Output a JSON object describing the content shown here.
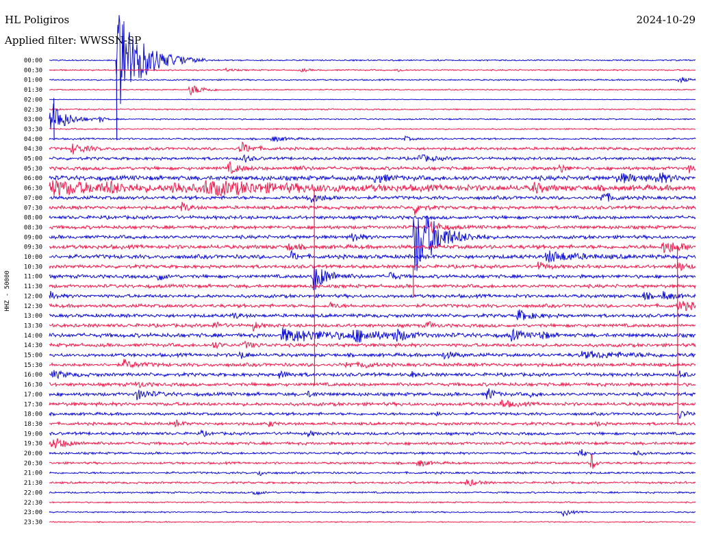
{
  "header": {
    "station": "HL Poligiros",
    "date": "2024-10-29",
    "filter": "Applied filter: WWSSN-SP"
  },
  "chart_data": {
    "type": "line",
    "title": "HL Poligiros",
    "subtitle": "Applied filter: WWSSN-SP",
    "ylabel": "HHZ - 50000",
    "xlabel": "",
    "date": "2024-10-29",
    "row_interval_minutes": 30,
    "colors": {
      "even_rows": "#0a0ad6",
      "odd_rows": "#f0184a"
    },
    "tick_labels": [
      "00:00",
      "00:30",
      "01:00",
      "01:30",
      "02:00",
      "02:30",
      "03:00",
      "03:30",
      "04:00",
      "04:30",
      "05:00",
      "05:30",
      "06:00",
      "06:30",
      "07:00",
      "07:30",
      "08:00",
      "08:30",
      "09:00",
      "09:30",
      "10:00",
      "10:30",
      "11:00",
      "11:30",
      "12:00",
      "12:30",
      "13:00",
      "13:30",
      "14:00",
      "14:30",
      "15:00",
      "15:30",
      "16:00",
      "16:30",
      "17:00",
      "17:30",
      "18:00",
      "18:30",
      "19:00",
      "19:30",
      "20:00",
      "20:30",
      "21:00",
      "21:30",
      "22:00",
      "22:30",
      "23:00",
      "23:30"
    ],
    "noise_levels": [
      1.2,
      1.2,
      1.2,
      1.0,
      0.6,
      1.2,
      1.2,
      1.2,
      1.5,
      2.5,
      2.5,
      3.0,
      4.0,
      5.0,
      3.0,
      3.0,
      3.0,
      3.0,
      3.0,
      3.5,
      3.5,
      3.0,
      3.0,
      3.0,
      3.0,
      3.0,
      3.0,
      3.0,
      3.5,
      3.0,
      3.0,
      3.0,
      3.0,
      3.0,
      3.0,
      3.0,
      2.5,
      2.5,
      2.5,
      2.5,
      2.0,
      2.0,
      1.8,
      1.8,
      1.5,
      1.2,
      1.2,
      1.0
    ],
    "events": [
      {
        "row": 0,
        "t": 0.105,
        "amp": 78,
        "dur": 0.035
      },
      {
        "row": 1,
        "t": 0.27,
        "amp": 3,
        "dur": 0.01
      },
      {
        "row": 1,
        "t": 0.39,
        "amp": 3,
        "dur": 0.008
      },
      {
        "row": 1,
        "t": 0.54,
        "amp": 3,
        "dur": 0.006
      },
      {
        "row": 2,
        "t": 0.975,
        "amp": 5,
        "dur": 0.01
      },
      {
        "row": 3,
        "t": 0.218,
        "amp": 8,
        "dur": 0.02
      },
      {
        "row": 6,
        "t": 0.003,
        "amp": 28,
        "dur": 0.02
      },
      {
        "row": 6,
        "t": 0.078,
        "amp": 4,
        "dur": 0.008
      },
      {
        "row": 8,
        "t": 0.345,
        "amp": 4,
        "dur": 0.02
      },
      {
        "row": 8,
        "t": 0.55,
        "amp": 4,
        "dur": 0.008
      },
      {
        "row": 9,
        "t": 0.035,
        "amp": 8,
        "dur": 0.02
      },
      {
        "row": 9,
        "t": 0.295,
        "amp": 10,
        "dur": 0.015
      },
      {
        "row": 10,
        "t": 0.3,
        "amp": 6,
        "dur": 0.01
      },
      {
        "row": 10,
        "t": 0.57,
        "amp": 6,
        "dur": 0.02
      },
      {
        "row": 11,
        "t": 0.278,
        "amp": 8,
        "dur": 0.015
      },
      {
        "row": 11,
        "t": 0.375,
        "amp": 4,
        "dur": 0.015
      },
      {
        "row": 11,
        "t": 0.79,
        "amp": 8,
        "dur": 0.008
      },
      {
        "row": 11,
        "t": 0.99,
        "amp": 6,
        "dur": 0.008
      },
      {
        "row": 12,
        "t": 0.505,
        "amp": 8,
        "dur": 0.015
      },
      {
        "row": 12,
        "t": 0.88,
        "amp": 6,
        "dur": 0.03
      },
      {
        "row": 12,
        "t": 0.94,
        "amp": 8,
        "dur": 0.015
      },
      {
        "row": 13,
        "t": 0.0,
        "amp": 10,
        "dur": 0.08
      },
      {
        "row": 13,
        "t": 0.09,
        "amp": 7,
        "dur": 0.015
      },
      {
        "row": 13,
        "t": 0.19,
        "amp": 9,
        "dur": 0.02
      },
      {
        "row": 13,
        "t": 0.24,
        "amp": 9,
        "dur": 0.13
      },
      {
        "row": 13,
        "t": 0.75,
        "amp": 9,
        "dur": 0.01
      },
      {
        "row": 14,
        "t": 0.4,
        "amp": 8,
        "dur": 0.02
      },
      {
        "row": 14,
        "t": 0.855,
        "amp": 8,
        "dur": 0.015
      },
      {
        "row": 15,
        "t": 0.205,
        "amp": 8,
        "dur": 0.01
      },
      {
        "row": 15,
        "t": 0.565,
        "amp": 10,
        "dur": 0.01
      },
      {
        "row": 17,
        "t": 0.59,
        "amp": 9,
        "dur": 0.015
      },
      {
        "row": 18,
        "t": 0.47,
        "amp": 8,
        "dur": 0.01
      },
      {
        "row": 18,
        "t": 0.565,
        "amp": 60,
        "dur": 0.03
      },
      {
        "row": 19,
        "t": 0.37,
        "amp": 6,
        "dur": 0.01
      },
      {
        "row": 19,
        "t": 0.95,
        "amp": 9,
        "dur": 0.03
      },
      {
        "row": 20,
        "t": 0.77,
        "amp": 8,
        "dur": 0.04
      },
      {
        "row": 20,
        "t": 0.375,
        "amp": 7,
        "dur": 0.008
      },
      {
        "row": 21,
        "t": 0.755,
        "amp": 6,
        "dur": 0.015
      },
      {
        "row": 21,
        "t": 0.97,
        "amp": 6,
        "dur": 0.02
      },
      {
        "row": 22,
        "t": 0.168,
        "amp": 8,
        "dur": 0.008
      },
      {
        "row": 22,
        "t": 0.408,
        "amp": 22,
        "dur": 0.02
      },
      {
        "row": 22,
        "t": 0.527,
        "amp": 8,
        "dur": 0.008
      },
      {
        "row": 24,
        "t": 0.0,
        "amp": 6,
        "dur": 0.01
      },
      {
        "row": 24,
        "t": 0.92,
        "amp": 6,
        "dur": 0.008
      },
      {
        "row": 24,
        "t": 0.95,
        "amp": 6,
        "dur": 0.015
      },
      {
        "row": 25,
        "t": 0.975,
        "amp": 8,
        "dur": 0.02
      },
      {
        "row": 25,
        "t": 0.435,
        "amp": 5,
        "dur": 0.008
      },
      {
        "row": 26,
        "t": 0.725,
        "amp": 8,
        "dur": 0.02
      },
      {
        "row": 26,
        "t": 0.285,
        "amp": 5,
        "dur": 0.008
      },
      {
        "row": 27,
        "t": 0.255,
        "amp": 6,
        "dur": 0.008
      },
      {
        "row": 27,
        "t": 0.315,
        "amp": 7,
        "dur": 0.008
      },
      {
        "row": 27,
        "t": 0.585,
        "amp": 6,
        "dur": 0.008
      },
      {
        "row": 28,
        "t": 0.36,
        "amp": 9,
        "dur": 0.08
      },
      {
        "row": 28,
        "t": 0.47,
        "amp": 8,
        "dur": 0.03
      },
      {
        "row": 28,
        "t": 0.533,
        "amp": 9,
        "dur": 0.015
      },
      {
        "row": 28,
        "t": 0.715,
        "amp": 8,
        "dur": 0.015
      },
      {
        "row": 28,
        "t": 0.76,
        "amp": 8,
        "dur": 0.008
      },
      {
        "row": 29,
        "t": 0.255,
        "amp": 6,
        "dur": 0.008
      },
      {
        "row": 29,
        "t": 0.3,
        "amp": 5,
        "dur": 0.015
      },
      {
        "row": 30,
        "t": 0.295,
        "amp": 7,
        "dur": 0.008
      },
      {
        "row": 30,
        "t": 0.61,
        "amp": 5,
        "dur": 0.015
      },
      {
        "row": 30,
        "t": 0.82,
        "amp": 4,
        "dur": 0.09
      },
      {
        "row": 31,
        "t": 0.115,
        "amp": 6,
        "dur": 0.02
      },
      {
        "row": 31,
        "t": 0.46,
        "amp": 6,
        "dur": 0.008
      },
      {
        "row": 31,
        "t": 0.485,
        "amp": 6,
        "dur": 0.01
      },
      {
        "row": 32,
        "t": 0.005,
        "amp": 5,
        "dur": 0.02
      },
      {
        "row": 32,
        "t": 0.355,
        "amp": 5,
        "dur": 0.015
      },
      {
        "row": 32,
        "t": 0.56,
        "amp": 4,
        "dur": 0.008
      },
      {
        "row": 32,
        "t": 0.975,
        "amp": 6,
        "dur": 0.008
      },
      {
        "row": 33,
        "t": 0.135,
        "amp": 5,
        "dur": 0.01
      },
      {
        "row": 34,
        "t": 0.135,
        "amp": 7,
        "dur": 0.02
      },
      {
        "row": 34,
        "t": 0.402,
        "amp": 5,
        "dur": 0.008
      },
      {
        "row": 34,
        "t": 0.678,
        "amp": 12,
        "dur": 0.008
      },
      {
        "row": 34,
        "t": 0.745,
        "amp": 4,
        "dur": 0.008
      },
      {
        "row": 35,
        "t": 0.7,
        "amp": 6,
        "dur": 0.015
      },
      {
        "row": 36,
        "t": 0.6,
        "amp": 4,
        "dur": 0.008
      },
      {
        "row": 36,
        "t": 0.975,
        "amp": 6,
        "dur": 0.01
      },
      {
        "row": 37,
        "t": 0.195,
        "amp": 5,
        "dur": 0.01
      },
      {
        "row": 37,
        "t": 0.34,
        "amp": 4,
        "dur": 0.008
      },
      {
        "row": 37,
        "t": 0.845,
        "amp": 4,
        "dur": 0.008
      },
      {
        "row": 38,
        "t": 0.235,
        "amp": 4,
        "dur": 0.008
      },
      {
        "row": 38,
        "t": 0.4,
        "amp": 4,
        "dur": 0.008
      },
      {
        "row": 39,
        "t": 0.005,
        "amp": 9,
        "dur": 0.02
      },
      {
        "row": 40,
        "t": 0.905,
        "amp": 4,
        "dur": 0.01
      },
      {
        "row": 40,
        "t": 0.82,
        "amp": 8,
        "dur": 0.008
      },
      {
        "row": 41,
        "t": 0.57,
        "amp": 5,
        "dur": 0.015
      },
      {
        "row": 41,
        "t": 0.838,
        "amp": 18,
        "dur": 0.005
      },
      {
        "row": 42,
        "t": 0.325,
        "amp": 4,
        "dur": 0.008
      },
      {
        "row": 43,
        "t": 0.645,
        "amp": 6,
        "dur": 0.015
      },
      {
        "row": 44,
        "t": 0.315,
        "amp": 5,
        "dur": 0.01
      },
      {
        "row": 46,
        "t": 0.795,
        "amp": 6,
        "dur": 0.01
      }
    ],
    "long_spikes": [
      {
        "t": 0.104,
        "from_row": 0,
        "to_row": 8
      },
      {
        "t": 0.007,
        "from_row": 4,
        "to_row": 8
      },
      {
        "t": 0.41,
        "from_row": 13,
        "to_row": 33
      },
      {
        "t": 0.563,
        "from_row": 21,
        "to_row": 24
      },
      {
        "t": 0.972,
        "from_row": 19,
        "to_row": 37
      }
    ]
  }
}
